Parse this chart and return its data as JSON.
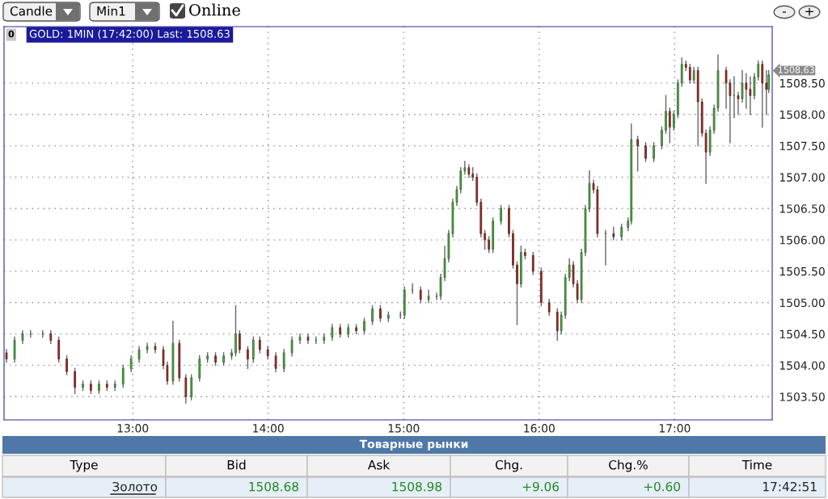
{
  "chart_data": {
    "type": "candlestick",
    "title": "GOLD: 1MIN (17:42:00) Last: 1508.63",
    "x": [
      12.068,
      12.128,
      12.187,
      12.246,
      12.335,
      12.395,
      12.454,
      12.513,
      12.573,
      12.632,
      12.691,
      12.751,
      12.81,
      12.869,
      12.929,
      12.988,
      13.047,
      13.107,
      13.166,
      13.226,
      13.255,
      13.297,
      13.344,
      13.392,
      13.433,
      13.493,
      13.552,
      13.611,
      13.671,
      13.73,
      13.76,
      13.789,
      13.849,
      13.89,
      13.938,
      13.997,
      14.056,
      14.116,
      14.175,
      14.234,
      14.294,
      14.353,
      14.412,
      14.472,
      14.531,
      14.591,
      14.65,
      14.709,
      14.769,
      14.828,
      14.887,
      14.976,
      15.006,
      15.065,
      15.125,
      15.184,
      15.243,
      15.273,
      15.303,
      15.332,
      15.362,
      15.392,
      15.421,
      15.451,
      15.481,
      15.51,
      15.54,
      15.57,
      15.599,
      15.629,
      15.659,
      15.718,
      15.777,
      15.807,
      15.837,
      15.866,
      15.896,
      15.955,
      16.015,
      16.074,
      16.134,
      16.163,
      16.193,
      16.223,
      16.252,
      16.282,
      16.312,
      16.341,
      16.371,
      16.401,
      16.43,
      16.49,
      16.549,
      16.608,
      16.656,
      16.68,
      16.727,
      16.786,
      16.846,
      16.905,
      16.935,
      16.964,
      16.994,
      17.024,
      17.053,
      17.083,
      17.113,
      17.142,
      17.172,
      17.202,
      17.231,
      17.261,
      17.291,
      17.32,
      17.38,
      17.409,
      17.439,
      17.469,
      17.499,
      17.528,
      17.558,
      17.588,
      17.617,
      17.647,
      17.677,
      17.694
    ],
    "ohlc": [
      [
        1504.2,
        1504.25,
        1504.05,
        1504.1
      ],
      [
        1504.1,
        1504.45,
        1504.05,
        1504.4
      ],
      [
        1504.4,
        1504.55,
        1504.35,
        1504.5
      ],
      [
        1504.5,
        1504.55,
        1504.45,
        1504.5
      ],
      [
        1504.5,
        1504.55,
        1504.45,
        1504.5
      ],
      [
        1504.5,
        1504.55,
        1504.35,
        1504.4
      ],
      [
        1504.4,
        1504.45,
        1504.05,
        1504.1
      ],
      [
        1504.1,
        1504.15,
        1503.85,
        1503.9
      ],
      [
        1503.9,
        1503.95,
        1503.55,
        1503.65
      ],
      [
        1503.65,
        1503.75,
        1503.6,
        1503.7
      ],
      [
        1503.7,
        1503.75,
        1503.55,
        1503.6
      ],
      [
        1503.6,
        1503.75,
        1503.55,
        1503.7
      ],
      [
        1503.7,
        1503.75,
        1503.6,
        1503.65
      ],
      [
        1503.65,
        1503.75,
        1503.6,
        1503.7
      ],
      [
        1503.7,
        1504.0,
        1503.65,
        1503.95
      ],
      [
        1503.95,
        1504.15,
        1503.9,
        1504.1
      ],
      [
        1504.1,
        1504.3,
        1504.05,
        1504.25
      ],
      [
        1504.25,
        1504.35,
        1504.2,
        1504.3
      ],
      [
        1504.3,
        1504.35,
        1504.2,
        1504.25
      ],
      [
        1504.25,
        1504.3,
        1503.95,
        1504.0
      ],
      [
        1504.0,
        1504.05,
        1503.7,
        1503.75
      ],
      [
        1503.75,
        1504.7,
        1503.7,
        1504.35
      ],
      [
        1504.35,
        1504.4,
        1503.75,
        1503.8
      ],
      [
        1503.8,
        1503.85,
        1503.4,
        1503.5
      ],
      [
        1503.5,
        1503.85,
        1503.45,
        1503.8
      ],
      [
        1503.8,
        1504.15,
        1503.75,
        1504.1
      ],
      [
        1504.1,
        1504.2,
        1504.05,
        1504.15
      ],
      [
        1504.15,
        1504.2,
        1504.0,
        1504.05
      ],
      [
        1504.05,
        1504.2,
        1504.0,
        1504.15
      ],
      [
        1504.15,
        1504.25,
        1504.1,
        1504.2
      ],
      [
        1504.2,
        1504.95,
        1504.15,
        1504.5
      ],
      [
        1504.5,
        1504.55,
        1504.2,
        1504.25
      ],
      [
        1504.25,
        1504.3,
        1503.95,
        1504.1
      ],
      [
        1504.1,
        1504.45,
        1504.05,
        1504.4
      ],
      [
        1504.4,
        1504.45,
        1504.2,
        1504.25
      ],
      [
        1504.25,
        1504.3,
        1504.1,
        1504.15
      ],
      [
        1504.15,
        1504.2,
        1503.9,
        1503.95
      ],
      [
        1503.95,
        1504.25,
        1503.9,
        1504.2
      ],
      [
        1504.2,
        1504.45,
        1504.15,
        1504.4
      ],
      [
        1504.4,
        1504.5,
        1504.35,
        1504.45
      ],
      [
        1504.45,
        1504.5,
        1504.35,
        1504.4
      ],
      [
        1504.4,
        1504.45,
        1504.35,
        1504.4
      ],
      [
        1504.4,
        1504.5,
        1504.35,
        1504.45
      ],
      [
        1504.45,
        1504.65,
        1504.4,
        1504.6
      ],
      [
        1504.6,
        1504.65,
        1504.45,
        1504.5
      ],
      [
        1504.5,
        1504.65,
        1504.45,
        1504.6
      ],
      [
        1504.6,
        1504.65,
        1504.5,
        1504.55
      ],
      [
        1504.55,
        1504.75,
        1504.5,
        1504.7
      ],
      [
        1504.7,
        1504.95,
        1504.65,
        1504.9
      ],
      [
        1504.9,
        1504.95,
        1504.7,
        1504.75
      ],
      [
        1504.75,
        1504.85,
        1504.7,
        1504.8
      ],
      [
        1504.8,
        1504.85,
        1504.75,
        1504.8
      ],
      [
        1504.8,
        1505.25,
        1504.75,
        1505.2
      ],
      [
        1505.2,
        1505.3,
        1505.15,
        1505.2
      ],
      [
        1505.2,
        1505.25,
        1505.0,
        1505.05
      ],
      [
        1505.05,
        1505.2,
        1505.0,
        1505.1
      ],
      [
        1505.1,
        1505.15,
        1505.05,
        1505.1
      ],
      [
        1505.1,
        1505.45,
        1505.05,
        1505.4
      ],
      [
        1505.4,
        1505.9,
        1505.35,
        1505.7
      ],
      [
        1505.7,
        1506.15,
        1505.65,
        1506.1
      ],
      [
        1506.1,
        1506.65,
        1506.05,
        1506.6
      ],
      [
        1506.6,
        1506.85,
        1506.55,
        1506.8
      ],
      [
        1506.8,
        1507.15,
        1506.75,
        1507.1
      ],
      [
        1507.1,
        1507.25,
        1507.05,
        1507.15
      ],
      [
        1507.15,
        1507.2,
        1507.0,
        1507.05
      ],
      [
        1507.05,
        1507.15,
        1506.95,
        1507.0
      ],
      [
        1507.0,
        1507.05,
        1506.55,
        1506.6
      ],
      [
        1506.6,
        1506.65,
        1506.05,
        1506.1
      ],
      [
        1506.1,
        1506.15,
        1505.85,
        1506.0
      ],
      [
        1506.0,
        1506.05,
        1505.8,
        1505.85
      ],
      [
        1505.85,
        1506.35,
        1505.8,
        1506.3
      ],
      [
        1506.3,
        1506.55,
        1506.25,
        1506.5
      ],
      [
        1506.5,
        1506.55,
        1506.05,
        1506.1
      ],
      [
        1506.1,
        1506.15,
        1505.55,
        1505.6
      ],
      [
        1505.6,
        1505.65,
        1504.65,
        1505.3
      ],
      [
        1505.3,
        1505.9,
        1505.25,
        1505.8
      ],
      [
        1505.8,
        1505.85,
        1505.7,
        1505.75
      ],
      [
        1505.75,
        1505.8,
        1505.45,
        1505.5
      ],
      [
        1505.5,
        1505.55,
        1504.95,
        1505.0
      ],
      [
        1505.0,
        1505.05,
        1504.8,
        1504.85
      ],
      [
        1504.85,
        1504.9,
        1504.4,
        1504.55
      ],
      [
        1504.55,
        1504.85,
        1504.5,
        1504.8
      ],
      [
        1504.8,
        1505.45,
        1504.75,
        1505.4
      ],
      [
        1505.4,
        1505.7,
        1505.35,
        1505.6
      ],
      [
        1505.6,
        1505.65,
        1505.25,
        1505.3
      ],
      [
        1505.3,
        1505.35,
        1505.0,
        1505.05
      ],
      [
        1505.05,
        1505.85,
        1505.0,
        1505.8
      ],
      [
        1505.8,
        1506.55,
        1505.75,
        1506.5
      ],
      [
        1506.5,
        1507.1,
        1506.45,
        1506.9
      ],
      [
        1506.9,
        1506.95,
        1506.75,
        1506.8
      ],
      [
        1506.8,
        1506.85,
        1506.05,
        1506.1
      ],
      [
        1506.1,
        1506.15,
        1505.6,
        1506.1
      ],
      [
        1506.1,
        1506.2,
        1506.0,
        1506.05
      ],
      [
        1506.05,
        1506.25,
        1506.0,
        1506.2
      ],
      [
        1506.2,
        1506.35,
        1506.15,
        1506.3
      ],
      [
        1506.3,
        1507.85,
        1506.25,
        1507.6
      ],
      [
        1507.6,
        1507.65,
        1507.1,
        1507.5
      ],
      [
        1507.5,
        1507.55,
        1507.25,
        1507.3
      ],
      [
        1507.3,
        1507.55,
        1507.25,
        1507.5
      ],
      [
        1507.5,
        1507.8,
        1507.45,
        1507.75
      ],
      [
        1507.75,
        1508.3,
        1507.7,
        1508.05
      ],
      [
        1508.05,
        1508.1,
        1507.55,
        1507.8
      ],
      [
        1507.8,
        1508.05,
        1507.75,
        1508.0
      ],
      [
        1508.0,
        1508.55,
        1507.95,
        1508.5
      ],
      [
        1508.5,
        1508.9,
        1508.45,
        1508.8
      ],
      [
        1508.8,
        1508.85,
        1508.7,
        1508.75
      ],
      [
        1508.75,
        1508.8,
        1508.5,
        1508.55
      ],
      [
        1508.55,
        1508.75,
        1508.5,
        1508.7
      ],
      [
        1508.7,
        1508.75,
        1507.5,
        1508.2
      ],
      [
        1508.2,
        1508.25,
        1507.65,
        1507.7
      ],
      [
        1507.7,
        1507.75,
        1506.9,
        1507.4
      ],
      [
        1507.4,
        1507.8,
        1507.35,
        1507.75
      ],
      [
        1507.75,
        1508.15,
        1507.7,
        1508.1
      ],
      [
        1508.1,
        1508.95,
        1508.05,
        1508.7
      ],
      [
        1508.7,
        1508.75,
        1508.1,
        1508.5
      ],
      [
        1508.5,
        1508.55,
        1507.55,
        1508.3
      ],
      [
        1508.3,
        1508.6,
        1507.95,
        1508.3
      ],
      [
        1508.3,
        1508.35,
        1508.0,
        1508.25
      ],
      [
        1508.25,
        1508.7,
        1508.2,
        1508.5
      ],
      [
        1508.5,
        1508.65,
        1508.1,
        1508.4
      ],
      [
        1508.4,
        1508.6,
        1508.0,
        1508.3
      ],
      [
        1508.3,
        1508.65,
        1508.25,
        1508.6
      ],
      [
        1508.6,
        1508.85,
        1508.55,
        1508.8
      ],
      [
        1508.8,
        1508.85,
        1507.8,
        1508.5
      ],
      [
        1508.5,
        1508.7,
        1508.0,
        1508.4
      ],
      [
        1508.4,
        1508.7,
        1508.35,
        1508.63
      ]
    ],
    "xlim": [
      12.05,
      17.72
    ],
    "xticks": [
      {
        "value": 13,
        "label": "13:00"
      },
      {
        "value": 14,
        "label": "14:00"
      },
      {
        "value": 15,
        "label": "15:00"
      },
      {
        "value": 16,
        "label": "16:00"
      },
      {
        "value": 17,
        "label": "17:00"
      }
    ],
    "ylim": [
      1503.13,
      1509.4
    ],
    "yticks": [
      {
        "value": 1503.5,
        "label": "1503.50"
      },
      {
        "value": 1504,
        "label": "1504.00"
      },
      {
        "value": 1504.5,
        "label": "1504.50"
      },
      {
        "value": 1505,
        "label": "1505.00"
      },
      {
        "value": 1505.5,
        "label": "1505.50"
      },
      {
        "value": 1506,
        "label": "1506.00"
      },
      {
        "value": 1506.5,
        "label": "1506.50"
      },
      {
        "value": 1507,
        "label": "1507.00"
      },
      {
        "value": 1507.5,
        "label": "1507.50"
      },
      {
        "value": 1508,
        "label": "1508.00"
      },
      {
        "value": 1508.5,
        "label": "1508.50"
      }
    ],
    "grid": true,
    "annotations": [
      "0",
      "Candle",
      "Min1",
      "Online",
      "-",
      "+",
      "Товарные рынки",
      "Type",
      "Bid",
      "Ask",
      "Chg.",
      "Chg.%",
      "Time",
      "Золото",
      "1508.68",
      "1508.98",
      "+9.06",
      "+0.60",
      "17:42:51",
      {
        "text": "1508.63",
        "x": 17.694,
        "y": 1508.63
      }
    ]
  }
}
